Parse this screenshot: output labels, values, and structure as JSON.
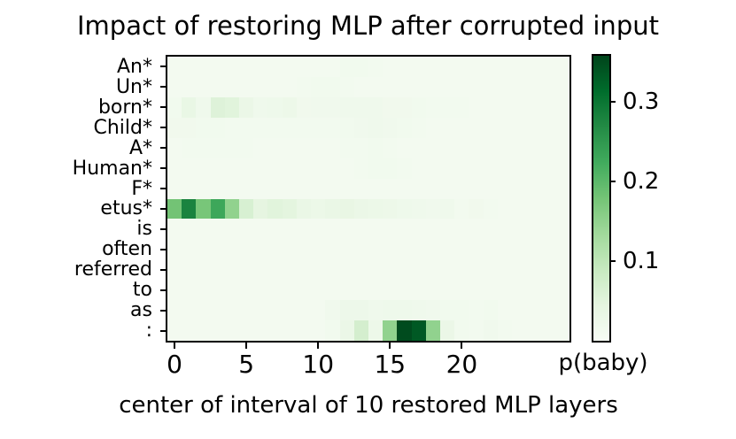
{
  "chart_data": {
    "type": "heatmap",
    "title": "Impact of restoring MLP after corrupted input",
    "xlabel": "center of interval of 10 restored MLP layers",
    "colorbar_label": "p(baby)",
    "colormap": "Greens",
    "colormap_anchors": [
      "#f7fcf5",
      "#e5f5e0",
      "#c7e9c0",
      "#a1d99b",
      "#74c476",
      "#41ab5d",
      "#238b45",
      "#006d2c",
      "#00441b"
    ],
    "vmin": 0,
    "vmax": 0.358,
    "colorbar_ticks": [
      0.1,
      0.2,
      0.3
    ],
    "x_tick_values": [
      0,
      5,
      10,
      15,
      20
    ],
    "x_values": [
      0,
      1,
      2,
      3,
      4,
      5,
      6,
      7,
      8,
      9,
      10,
      11,
      12,
      13,
      14,
      15,
      16,
      17,
      18,
      19,
      20,
      21,
      22,
      23,
      24,
      25,
      26,
      27
    ],
    "rows": [
      "An*",
      "Un*",
      "born*",
      "Child*",
      "A*",
      "Human*",
      "F*",
      "etus*",
      "is",
      "often",
      "referred",
      "to",
      "as",
      ":"
    ],
    "values": [
      [
        0.01,
        0.01,
        0.01,
        0.01,
        0.01,
        0.01,
        0.01,
        0.01,
        0.01,
        0.01,
        0.01,
        0.01,
        0.014,
        0.014,
        0.013,
        0.01,
        0.01,
        0.01,
        0.01,
        0.01,
        0.01,
        0.01,
        0.01,
        0.01,
        0.01,
        0.01,
        0.01,
        0.01
      ],
      [
        0.01,
        0.01,
        0.01,
        0.01,
        0.01,
        0.01,
        0.01,
        0.01,
        0.01,
        0.012,
        0.014,
        0.014,
        0.012,
        0.01,
        0.01,
        0.01,
        0.01,
        0.01,
        0.01,
        0.01,
        0.01,
        0.01,
        0.01,
        0.01,
        0.01,
        0.01,
        0.01,
        0.01
      ],
      [
        0.015,
        0.035,
        0.02,
        0.055,
        0.05,
        0.03,
        0.02,
        0.022,
        0.026,
        0.016,
        0.018,
        0.018,
        0.02,
        0.02,
        0.019,
        0.016,
        0.016,
        0.014,
        0.012,
        0.012,
        0.012,
        0.01,
        0.01,
        0.01,
        0.01,
        0.01,
        0.01,
        0.01
      ],
      [
        0.016,
        0.016,
        0.014,
        0.014,
        0.012,
        0.012,
        0.012,
        0.012,
        0.012,
        0.012,
        0.012,
        0.012,
        0.014,
        0.018,
        0.02,
        0.018,
        0.014,
        0.012,
        0.01,
        0.01,
        0.01,
        0.01,
        0.01,
        0.01,
        0.01,
        0.01,
        0.01,
        0.01
      ],
      [
        0.01,
        0.013,
        0.013,
        0.013,
        0.013,
        0.012,
        0.01,
        0.01,
        0.01,
        0.01,
        0.01,
        0.01,
        0.012,
        0.012,
        0.015,
        0.013,
        0.01,
        0.01,
        0.01,
        0.01,
        0.01,
        0.01,
        0.01,
        0.01,
        0.01,
        0.01,
        0.01,
        0.01
      ],
      [
        0.01,
        0.01,
        0.01,
        0.01,
        0.01,
        0.01,
        0.01,
        0.01,
        0.01,
        0.01,
        0.01,
        0.01,
        0.01,
        0.012,
        0.015,
        0.014,
        0.012,
        0.01,
        0.01,
        0.01,
        0.01,
        0.01,
        0.01,
        0.01,
        0.01,
        0.01,
        0.01,
        0.01
      ],
      [
        0.01,
        0.01,
        0.01,
        0.01,
        0.01,
        0.01,
        0.01,
        0.01,
        0.01,
        0.01,
        0.01,
        0.01,
        0.01,
        0.01,
        0.01,
        0.01,
        0.01,
        0.01,
        0.01,
        0.01,
        0.01,
        0.01,
        0.01,
        0.01,
        0.01,
        0.01,
        0.01,
        0.01
      ],
      [
        0.18,
        0.28,
        0.175,
        0.23,
        0.15,
        0.065,
        0.042,
        0.05,
        0.046,
        0.032,
        0.027,
        0.032,
        0.036,
        0.03,
        0.028,
        0.025,
        0.022,
        0.02,
        0.018,
        0.02,
        0.013,
        0.016,
        0.012,
        0.011,
        0.01,
        0.01,
        0.01,
        0.01
      ],
      [
        0.01,
        0.01,
        0.01,
        0.01,
        0.01,
        0.01,
        0.01,
        0.01,
        0.01,
        0.01,
        0.01,
        0.01,
        0.01,
        0.01,
        0.01,
        0.01,
        0.01,
        0.01,
        0.01,
        0.01,
        0.01,
        0.01,
        0.01,
        0.01,
        0.01,
        0.01,
        0.01,
        0.01
      ],
      [
        0.01,
        0.01,
        0.01,
        0.01,
        0.01,
        0.01,
        0.01,
        0.01,
        0.01,
        0.01,
        0.01,
        0.01,
        0.01,
        0.01,
        0.01,
        0.01,
        0.01,
        0.01,
        0.01,
        0.01,
        0.01,
        0.01,
        0.01,
        0.01,
        0.01,
        0.01,
        0.01,
        0.01
      ],
      [
        0.01,
        0.01,
        0.01,
        0.01,
        0.01,
        0.01,
        0.01,
        0.01,
        0.01,
        0.01,
        0.01,
        0.01,
        0.01,
        0.01,
        0.01,
        0.01,
        0.01,
        0.01,
        0.01,
        0.01,
        0.01,
        0.01,
        0.01,
        0.01,
        0.01,
        0.01,
        0.01,
        0.01
      ],
      [
        0.01,
        0.01,
        0.01,
        0.01,
        0.01,
        0.01,
        0.01,
        0.01,
        0.01,
        0.01,
        0.01,
        0.01,
        0.01,
        0.01,
        0.01,
        0.01,
        0.01,
        0.01,
        0.01,
        0.01,
        0.01,
        0.01,
        0.01,
        0.01,
        0.01,
        0.01,
        0.01,
        0.01
      ],
      [
        0.01,
        0.01,
        0.01,
        0.01,
        0.01,
        0.01,
        0.01,
        0.01,
        0.01,
        0.01,
        0.01,
        0.018,
        0.024,
        0.024,
        0.02,
        0.022,
        0.022,
        0.02,
        0.018,
        0.014,
        0.014,
        0.012,
        0.014,
        0.01,
        0.01,
        0.01,
        0.01,
        0.01
      ],
      [
        0.01,
        0.01,
        0.01,
        0.01,
        0.01,
        0.01,
        0.01,
        0.01,
        0.01,
        0.01,
        0.01,
        0.015,
        0.03,
        0.07,
        0.025,
        0.15,
        0.35,
        0.335,
        0.15,
        0.03,
        0.015,
        0.012,
        0.018,
        0.012,
        0.01,
        0.01,
        0.01,
        0.01
      ]
    ]
  }
}
